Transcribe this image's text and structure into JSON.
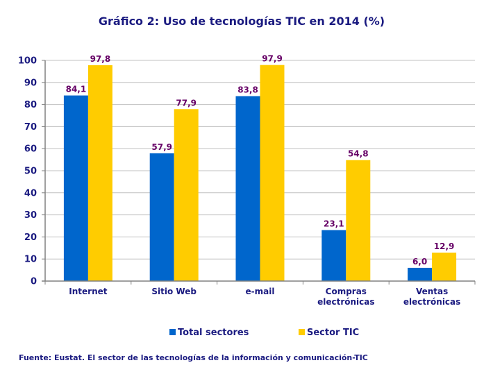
{
  "chart_data": {
    "type": "bar",
    "title": "Gráfico 2: Uso de tecnologías TIC en 2014 (%)",
    "categories": [
      [
        "Internet"
      ],
      [
        "Sitio Web"
      ],
      [
        "e-mail"
      ],
      [
        "Compras",
        "electrónicas"
      ],
      [
        "Ventas",
        "electrónicas"
      ]
    ],
    "series": [
      {
        "name": "Total sectores",
        "color": "#0066cc",
        "values": [
          84.1,
          57.9,
          83.8,
          23.1,
          6.0
        ],
        "labels": [
          "84,1",
          "57,9",
          "83,8",
          "23,1",
          "6,0"
        ]
      },
      {
        "name": "Sector TIC",
        "color": "#ffcc00",
        "values": [
          97.8,
          77.9,
          97.9,
          54.8,
          12.9
        ],
        "labels": [
          "97,8",
          "77,9",
          "97,9",
          "54,8",
          "12,9"
        ]
      }
    ],
    "ylim": [
      0,
      100
    ],
    "yticks": [
      "0",
      "10",
      "20",
      "30",
      "40",
      "50",
      "60",
      "70",
      "80",
      "90",
      "100"
    ],
    "grid": true,
    "legend_position": "bottom",
    "text_color": "#1a1a80",
    "label_color": "#660066"
  },
  "source": "Fuente: Eustat. El sector de las tecnologías de la información y comunicación-TIC"
}
